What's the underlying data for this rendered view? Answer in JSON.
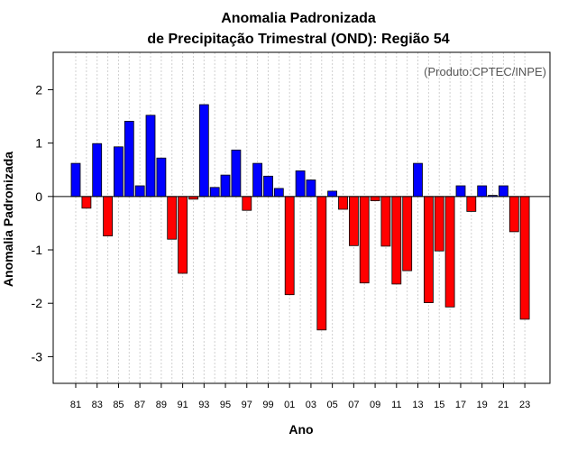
{
  "chart_data": {
    "type": "bar",
    "title": "Anomalia Padronizada",
    "subtitle": "de Precipitação Trimestral (OND): Região 54",
    "xlabel": "Ano",
    "ylabel": "Anomalia Padronizada",
    "credit": "(Produto:CPTEC/INPE)",
    "ylim": [
      -3.5,
      2.7
    ],
    "yticks": [
      -3,
      -2,
      -1,
      0,
      1,
      2
    ],
    "ytick_labels": [
      "-3",
      "-2",
      "-1",
      "0",
      "1",
      "2"
    ],
    "positive_color": "#0000ff",
    "negative_color": "#ff0000",
    "categories": [
      "81",
      "82",
      "83",
      "84",
      "85",
      "86",
      "87",
      "88",
      "89",
      "90",
      "91",
      "92",
      "93",
      "94",
      "95",
      "96",
      "97",
      "98",
      "99",
      "00",
      "01",
      "02",
      "03",
      "04",
      "05",
      "06",
      "07",
      "08",
      "09",
      "10",
      "11",
      "12",
      "13",
      "14",
      "15",
      "16",
      "17",
      "18",
      "19",
      "20",
      "21",
      "22",
      "23"
    ],
    "xtick_labels": [
      "81",
      "83",
      "85",
      "87",
      "89",
      "91",
      "93",
      "95",
      "97",
      "99",
      "01",
      "03",
      "05",
      "07",
      "09",
      "11",
      "13",
      "15",
      "17",
      "19",
      "21",
      "23"
    ],
    "values": [
      0.62,
      -0.22,
      0.99,
      -0.74,
      0.93,
      1.41,
      0.2,
      1.52,
      0.72,
      -0.8,
      -1.44,
      -0.05,
      1.72,
      0.17,
      0.4,
      0.87,
      -0.26,
      0.62,
      0.38,
      0.15,
      -1.84,
      0.48,
      0.31,
      -2.5,
      0.1,
      -0.24,
      -0.92,
      -1.62,
      -0.08,
      -0.93,
      -1.64,
      -1.39,
      0.62,
      -1.99,
      -1.02,
      -2.07,
      0.2,
      -0.28,
      0.2,
      0.02,
      0.2,
      -0.66,
      -2.3
    ]
  }
}
